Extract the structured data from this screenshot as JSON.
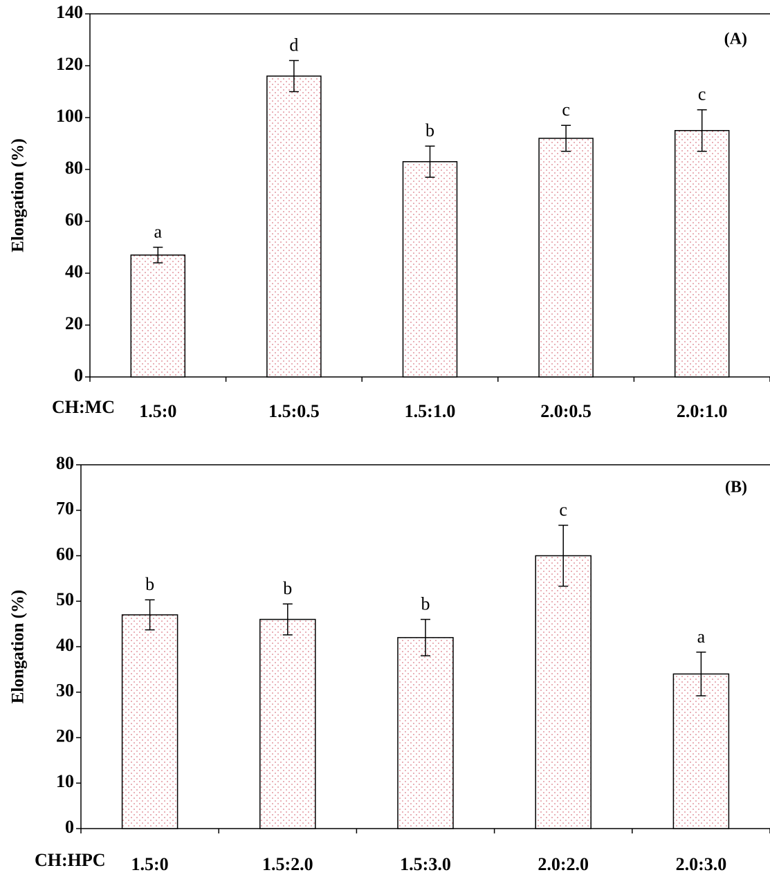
{
  "chart_data": [
    {
      "type": "bar",
      "panel_label": "(A)",
      "ylabel": "Elongation (%)",
      "xlabel": "CH:MC",
      "categories": [
        "1.5:0",
        "1.5:0.5",
        "1.5:1.0",
        "2.0:0.5",
        "2.0:1.0"
      ],
      "values": [
        47,
        116,
        83,
        92,
        95
      ],
      "errors": [
        3,
        6,
        6,
        5,
        8
      ],
      "letters": [
        "a",
        "d",
        "b",
        "c",
        "c"
      ],
      "ylim": [
        0,
        140
      ],
      "yticks": [
        0,
        20,
        40,
        60,
        80,
        100,
        120,
        140
      ]
    },
    {
      "type": "bar",
      "panel_label": "(B)",
      "ylabel": "Elongation (%)",
      "xlabel": "CH:HPC",
      "categories": [
        "1.5:0",
        "1.5:2.0",
        "1.5:3.0",
        "2.0:2.0",
        "2.0:3.0"
      ],
      "values": [
        47,
        46,
        42,
        60,
        34
      ],
      "errors": [
        3.3,
        3.4,
        4,
        6.7,
        4.8
      ],
      "letters": [
        "b",
        "b",
        "b",
        "c",
        "a"
      ],
      "ylim": [
        0,
        80
      ],
      "yticks": [
        0,
        10,
        20,
        30,
        40,
        50,
        60,
        70,
        80
      ]
    }
  ]
}
